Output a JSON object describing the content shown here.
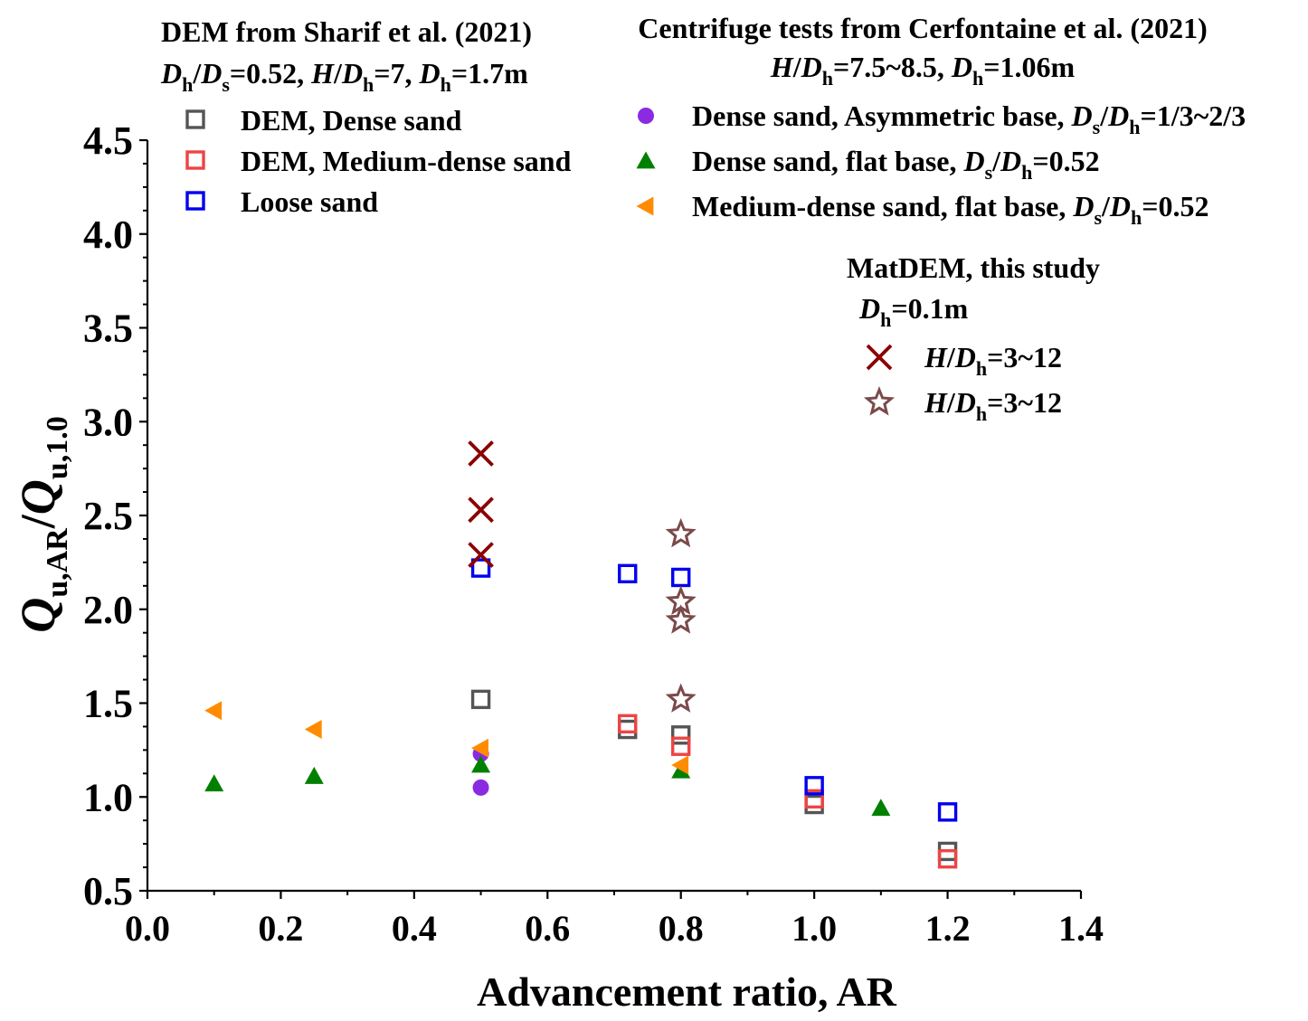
{
  "chart_data": {
    "type": "scatter",
    "title": "",
    "xlabel": "Advancement ratio, AR",
    "ylabel": {
      "main": "Q",
      "sub1": "u,AR",
      "sep": "/",
      "main2": "Q",
      "sub2": "u,1.0"
    },
    "xlim": [
      0.0,
      1.4
    ],
    "ylim": [
      0.5,
      4.5
    ],
    "xticks": [
      "0.0",
      "0.2",
      "0.4",
      "0.6",
      "0.8",
      "1.0",
      "1.2",
      "1.4"
    ],
    "yticks": [
      "0.5",
      "1.0",
      "1.5",
      "2.0",
      "2.5",
      "3.0",
      "3.5",
      "4.0",
      "4.5"
    ],
    "xtick_values": [
      0.0,
      0.2,
      0.4,
      0.6,
      0.8,
      1.0,
      1.2,
      1.4
    ],
    "ytick_values": [
      0.5,
      1.0,
      1.5,
      2.0,
      2.5,
      3.0,
      3.5,
      4.0,
      4.5
    ],
    "grid": false,
    "legend_groups": [
      {
        "heading": "DEM from Sharif et al. (2021)",
        "params": [
          {
            "i": "D",
            "s": "h"
          },
          {
            "t": "/"
          },
          {
            "i": "D",
            "s": "s"
          },
          {
            "t": "=0.52, "
          },
          {
            "i": "H"
          },
          {
            "t": "/"
          },
          {
            "i": "D",
            "s": "h"
          },
          {
            "t": "=7, "
          },
          {
            "i": "D",
            "s": "h"
          },
          {
            "t": "=1.7m"
          }
        ],
        "placement": "top-left"
      },
      {
        "heading": "Centrifuge tests from Cerfontaine et al. (2021)",
        "params": [
          {
            "i": "H"
          },
          {
            "t": "/"
          },
          {
            "i": "D",
            "s": "h"
          },
          {
            "t": "=7.5~8.5, "
          },
          {
            "i": "D",
            "s": "h"
          },
          {
            "t": "=1.06m"
          }
        ],
        "placement": "top-right"
      },
      {
        "heading": "MatDEM, this study",
        "params": [
          {
            "i": "D",
            "s": "h"
          },
          {
            "t": "=0.1m"
          }
        ],
        "placement": "upper-right"
      }
    ],
    "series": [
      {
        "name": "DEM, Dense sand",
        "label_parts": [
          {
            "t": "DEM, Dense sand"
          }
        ],
        "marker": "square-open",
        "color": "#555555",
        "points": [
          [
            0.5,
            1.52
          ],
          [
            0.72,
            1.36
          ],
          [
            0.8,
            1.33
          ],
          [
            1.0,
            0.96
          ],
          [
            1.2,
            0.71
          ]
        ]
      },
      {
        "name": "DEM, Medium-dense sand",
        "label_parts": [
          {
            "t": "DEM, Medium-dense sand"
          }
        ],
        "marker": "square-open",
        "color": "#ee4444",
        "points": [
          [
            0.72,
            1.39
          ],
          [
            0.8,
            1.27
          ],
          [
            1.0,
            0.99
          ],
          [
            1.2,
            0.67
          ]
        ]
      },
      {
        "name": "Loose sand",
        "label_parts": [
          {
            "t": "Loose sand"
          }
        ],
        "marker": "square-open",
        "color": "#0000ee",
        "points": [
          [
            0.5,
            2.22
          ],
          [
            0.72,
            2.19
          ],
          [
            0.8,
            2.17
          ],
          [
            1.0,
            1.06
          ],
          [
            1.2,
            0.92
          ]
        ]
      },
      {
        "name": "Dense sand, Asymmetric base, Ds/Dh=1/3~2/3",
        "label_parts": [
          {
            "t": "Dense sand, Asymmetric base, "
          },
          {
            "i": "D",
            "s": "s"
          },
          {
            "t": "/"
          },
          {
            "i": "D",
            "s": "h"
          },
          {
            "t": "=1/3~2/3"
          }
        ],
        "marker": "circle",
        "color": "#8a2be2",
        "points": [
          [
            0.5,
            1.23
          ],
          [
            0.5,
            1.05
          ]
        ]
      },
      {
        "name": "Dense sand, flat base, Ds/Dh=0.52",
        "label_parts": [
          {
            "t": "Dense sand, flat base, "
          },
          {
            "i": "D",
            "s": "s"
          },
          {
            "t": "/"
          },
          {
            "i": "D",
            "s": "h"
          },
          {
            "t": "=0.52"
          }
        ],
        "marker": "triangle-up",
        "color": "#008000",
        "points": [
          [
            0.1,
            1.07
          ],
          [
            0.25,
            1.11
          ],
          [
            0.5,
            1.17
          ],
          [
            0.8,
            1.14
          ],
          [
            1.1,
            0.94
          ]
        ]
      },
      {
        "name": "Medium-dense sand, flat base, Ds/Dh=0.52",
        "label_parts": [
          {
            "t": "Medium-dense sand, flat base, "
          },
          {
            "i": "D",
            "s": "s"
          },
          {
            "t": "/"
          },
          {
            "i": "D",
            "s": "h"
          },
          {
            "t": "=0.52"
          }
        ],
        "marker": "triangle-left",
        "color": "#ff8c00",
        "points": [
          [
            0.1,
            1.46
          ],
          [
            0.25,
            1.36
          ],
          [
            0.5,
            1.26
          ],
          [
            0.8,
            1.17
          ]
        ]
      },
      {
        "name": "H/Dh=3~12 (cross)",
        "label_parts": [
          {
            "i": "H"
          },
          {
            "t": "/"
          },
          {
            "i": "D",
            "s": "h"
          },
          {
            "t": "=3~12"
          }
        ],
        "marker": "cross",
        "color": "#8b0000",
        "points": [
          [
            0.5,
            2.83
          ],
          [
            0.5,
            2.53
          ],
          [
            0.5,
            2.29
          ]
        ]
      },
      {
        "name": "H/Dh=3~12 (star)",
        "label_parts": [
          {
            "i": "H"
          },
          {
            "t": "/"
          },
          {
            "i": "D",
            "s": "h"
          },
          {
            "t": "=3~12"
          }
        ],
        "marker": "star-open",
        "color": "#7b4a4a",
        "points": [
          [
            0.8,
            2.4
          ],
          [
            0.8,
            2.04
          ],
          [
            0.8,
            1.94
          ],
          [
            0.8,
            1.52
          ]
        ]
      }
    ]
  }
}
